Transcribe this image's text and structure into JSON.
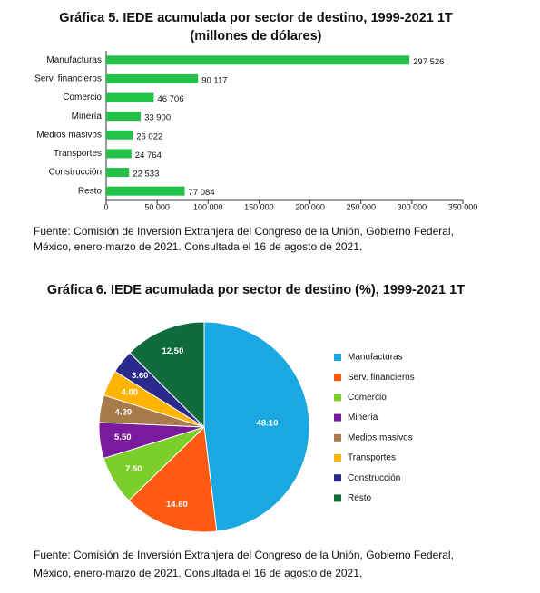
{
  "chart_data": [
    {
      "type": "bar",
      "orientation": "horizontal",
      "title": "Gráfica 5. IEDE acumulada por sector de destino, 1999-2021 1T",
      "subtitle": "(millones de dólares)",
      "categories": [
        "Manufacturas",
        "Serv. financieros",
        "Comercio",
        "Minería",
        "Medios masivos",
        "Transportes",
        "Construcción",
        "Resto"
      ],
      "values": [
        297526,
        90117,
        46706,
        33900,
        26022,
        24764,
        22533,
        77084
      ],
      "value_labels": [
        "297 526",
        "90 117",
        "46 706",
        "33 900",
        "26 022",
        "24 764",
        "22 533",
        "77 084"
      ],
      "color": "#22c24a",
      "xlim": [
        0,
        350000
      ],
      "xticks": [
        0,
        {
          "value": 50000,
          "label": "50 000"
        },
        {
          "value": 100000,
          "label": "100 000"
        },
        {
          "value": 150000,
          "label": "150 000"
        },
        {
          "value": 200000,
          "label": "200 000"
        },
        {
          "value": 250000,
          "label": "250 000"
        },
        {
          "value": 300000,
          "label": "300 000"
        },
        {
          "value": 350000,
          "label": "350 000"
        }
      ],
      "source": [
        "Fuente: Comisión de Inversión Extranjera del Congreso de la Unión, Gobierno Federal,",
        "México, enero-marzo de 2021. Consultada el 16 de agosto de 2021."
      ]
    },
    {
      "type": "pie",
      "title": "Gráfica 6. IEDE acumulada por sector de destino (%), 1999-2021 1T",
      "categories": [
        "Manufacturas",
        "Serv. financieros",
        "Comercio",
        "Minería",
        "Medios masivos",
        "Transportes",
        "Construcción",
        "Resto"
      ],
      "values": [
        48.1,
        14.6,
        7.5,
        5.5,
        4.2,
        4.0,
        3.6,
        12.5
      ],
      "value_labels": [
        "48.10",
        "14.60",
        "7.50",
        "5.50",
        "4.20",
        "4.00",
        "3.60",
        "12.50"
      ],
      "colors": [
        "#1aa8e2",
        "#ff5a12",
        "#7ccf2a",
        "#7b1a9c",
        "#a97b4b",
        "#ffb400",
        "#2b2a8c",
        "#0f6b3b"
      ],
      "legend": "right",
      "source": [
        "Fuente: Comisión de Inversión Extranjera del Congreso de la Unión, Gobierno Federal,",
        "México, enero-marzo de 2021. Consultada el 16 de agosto de 2021."
      ]
    }
  ]
}
